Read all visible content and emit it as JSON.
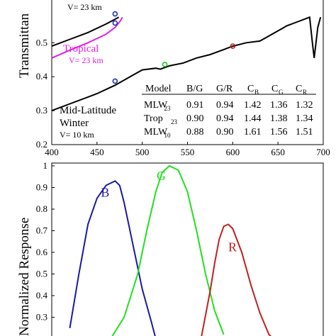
{
  "chart_data": [
    {
      "type": "line",
      "ylabel": "Transmittan",
      "xlim": [
        400,
        700
      ],
      "ylim": [
        0.2,
        0.63
      ],
      "x_ticks": [
        "400",
        "450",
        "500",
        "550",
        "600",
        "650",
        "700"
      ],
      "y_ticks": [
        "0.2",
        "0.3",
        "0.4",
        "0.5"
      ],
      "grid": false,
      "annotations": {
        "tropical_name": "Tropical",
        "tropical_vis": "V= 23 km",
        "mlw23_vis": "V= 23 km",
        "mlw10_name_1": "Mid-Latitude",
        "mlw10_name_2": "Winter",
        "mlw10_vis": "V= 10 km"
      },
      "series": [
        {
          "key": "mlw23",
          "color": "#000000",
          "x": [
            400,
            420,
            440,
            460,
            472,
            474
          ],
          "y": [
            0.49,
            0.51,
            0.53,
            0.555,
            0.572,
            0.575
          ]
        },
        {
          "key": "tropical",
          "color": "#e020e0",
          "x": [
            400,
            420,
            440,
            460,
            470,
            476,
            478
          ],
          "y": [
            0.455,
            0.478,
            0.5,
            0.525,
            0.545,
            0.565,
            0.575
          ]
        },
        {
          "key": "mlw10",
          "color": "#000000",
          "x": [
            400,
            420,
            450,
            470,
            490,
            500,
            515,
            520,
            530,
            545,
            560,
            575,
            590,
            600,
            615,
            630,
            640,
            650,
            660,
            670,
            680,
            685,
            688,
            690,
            692,
            694,
            697
          ],
          "y": [
            0.3,
            0.32,
            0.35,
            0.375,
            0.405,
            0.42,
            0.425,
            0.422,
            0.432,
            0.44,
            0.455,
            0.465,
            0.48,
            0.49,
            0.5,
            0.505,
            0.52,
            0.535,
            0.55,
            0.56,
            0.57,
            0.575,
            0.5,
            0.455,
            0.5,
            0.545,
            0.575
          ]
        }
      ],
      "markers": [
        {
          "x": 470,
          "y": 0.585,
          "color": "#2030c0"
        },
        {
          "x": 470,
          "y": 0.558,
          "color": "#2030c0"
        },
        {
          "x": 470,
          "y": 0.387,
          "color": "#2030c0"
        },
        {
          "x": 525,
          "y": 0.436,
          "color": "#20c020"
        },
        {
          "x": 600,
          "y": 0.49,
          "color": "#c02020"
        }
      ],
      "table": {
        "headers": [
          "Model",
          "B/G",
          "G/R",
          "C",
          "C",
          "C"
        ],
        "header_subs": [
          "",
          "",
          "",
          "B",
          "G",
          "R"
        ],
        "rows": [
          {
            "name": "MLW",
            "sub": "23",
            "values": [
              "0.91",
              "0.94",
              "1.42",
              "1.36",
              "1.32"
            ]
          },
          {
            "name": "Trop",
            "sub": "23",
            "values": [
              "0.90",
              "0.94",
              "1.44",
              "1.38",
              "1.34"
            ]
          },
          {
            "name": "MLW",
            "sub": "10",
            "values": [
              "0.88",
              "0.90",
              "1.61",
              "1.56",
              "1.51"
            ]
          }
        ]
      }
    },
    {
      "type": "line",
      "ylabel": "Normalized Response",
      "xlim": [
        400,
        700
      ],
      "ylim": [
        0.2,
        1.0
      ],
      "y_ticks": [
        "1",
        "0.9",
        "0.8",
        "0.7",
        "0.6",
        "0.5",
        "0.4",
        "0.3"
      ],
      "grid": false,
      "series": [
        {
          "name": "B",
          "color": "#1a1aa0",
          "x": [
            420,
            430,
            440,
            450,
            460,
            470,
            475,
            480,
            490,
            500,
            510,
            515
          ],
          "y": [
            0.25,
            0.5,
            0.73,
            0.85,
            0.91,
            0.93,
            0.91,
            0.83,
            0.63,
            0.43,
            0.28,
            0.2
          ]
        },
        {
          "name": "G",
          "color": "#20e020",
          "x": [
            465,
            480,
            495,
            505,
            515,
            522,
            530,
            540,
            550,
            560,
            570,
            580,
            590
          ],
          "y": [
            0.2,
            0.3,
            0.5,
            0.7,
            0.88,
            0.97,
            1.0,
            0.98,
            0.88,
            0.7,
            0.5,
            0.33,
            0.22
          ]
        },
        {
          "name": "R",
          "color": "#c02020",
          "x": [
            565,
            575,
            580,
            585,
            590,
            595,
            600,
            610,
            620,
            630,
            640,
            645
          ],
          "y": [
            0.2,
            0.42,
            0.55,
            0.66,
            0.72,
            0.73,
            0.71,
            0.6,
            0.45,
            0.32,
            0.22,
            0.2
          ]
        }
      ]
    }
  ]
}
